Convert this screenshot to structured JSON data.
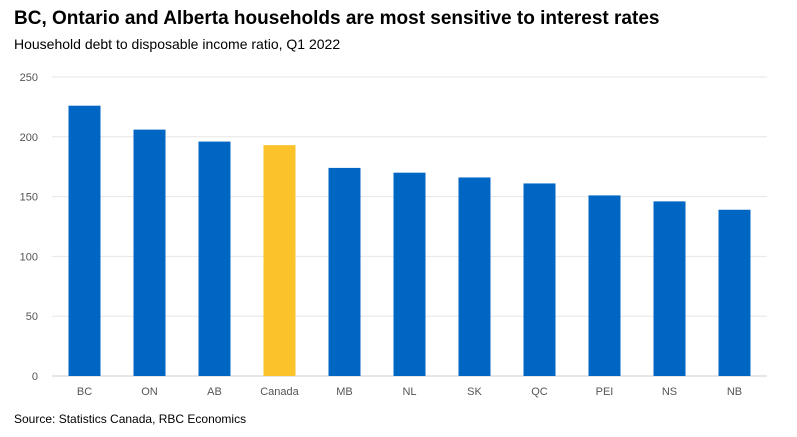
{
  "title": "BC, Ontario and Alberta households are most sensitive to interest rates",
  "subtitle": "Household debt to disposable income ratio, Q1 2022",
  "source": "Source: Statistics Canada, RBC Economics",
  "colors": {
    "bar": "#0066c4",
    "highlight": "#fcc22a",
    "grid": "#e6e6e6",
    "axis": "#cccccc"
  },
  "chart_data": {
    "type": "bar",
    "categories": [
      "BC",
      "ON",
      "AB",
      "Canada",
      "MB",
      "NL",
      "SK",
      "QC",
      "PEI",
      "NS",
      "NB"
    ],
    "values": [
      226,
      206,
      196,
      193,
      174,
      170,
      166,
      161,
      151,
      146,
      139
    ],
    "highlight": "Canada",
    "ylim": [
      0,
      250
    ],
    "yticks": [
      0,
      50,
      100,
      150,
      200,
      250
    ],
    "grid": true,
    "xlabel": "",
    "ylabel": ""
  }
}
